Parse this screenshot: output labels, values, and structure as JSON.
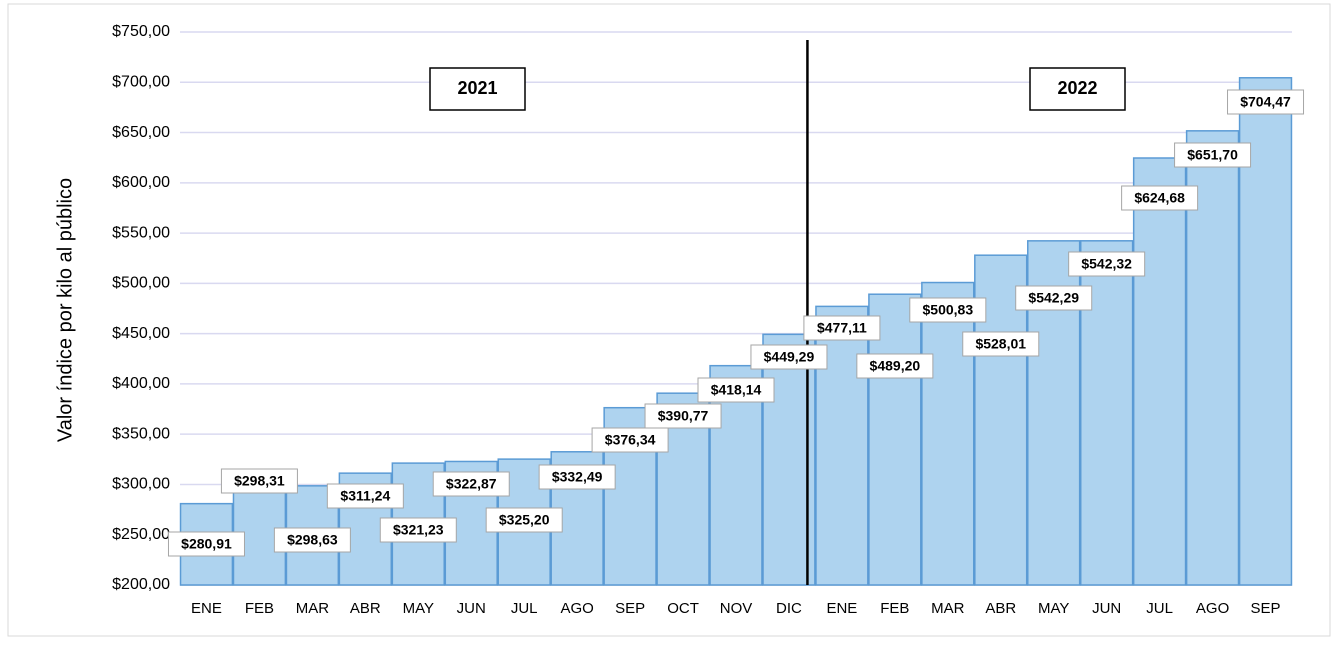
{
  "chart_data": {
    "type": "bar",
    "y_label": "Valor índice por kilo al público",
    "annotations": [
      "2021",
      "2022"
    ],
    "categories": [
      "ENE",
      "FEB",
      "MAR",
      "ABR",
      "MAY",
      "JUN",
      "JUL",
      "AGO",
      "SEP",
      "OCT",
      "NOV",
      "DIC",
      "ENE",
      "FEB",
      "MAR",
      "ABR",
      "MAY",
      "JUN",
      "JUL",
      "AGO",
      "SEP"
    ],
    "values": [
      280.91,
      298.31,
      298.63,
      311.24,
      321.23,
      322.87,
      325.2,
      332.49,
      376.34,
      390.77,
      418.14,
      449.29,
      477.11,
      489.2,
      500.83,
      528.01,
      542.29,
      542.32,
      624.68,
      651.7,
      704.47
    ],
    "value_labels": [
      "$280,91",
      "$298,31",
      "$298,63",
      "$311,24",
      "$321,23",
      "$322,87",
      "$325,20",
      "$332,49",
      "$376,34",
      "$390,77",
      "$418,14",
      "$449,29",
      "$477,11",
      "$489,20",
      "$500,83",
      "$528,01",
      "$542,29",
      "$542,32",
      "$624,68",
      "$651,70",
      "$704,47"
    ],
    "color": "#aed3ef",
    "ylim": [
      200,
      750
    ],
    "yticks": [
      {
        "value": 200,
        "label": "$200,00"
      },
      {
        "value": 250,
        "label": "$250,00"
      },
      {
        "value": 300,
        "label": "$300,00"
      },
      {
        "value": 350,
        "label": "$350,00"
      },
      {
        "value": 400,
        "label": "$400,00"
      },
      {
        "value": 450,
        "label": "$450,00"
      },
      {
        "value": 500,
        "label": "$500,00"
      },
      {
        "value": 550,
        "label": "$550,00"
      },
      {
        "value": 600,
        "label": "$600,00"
      },
      {
        "value": 650,
        "label": "$650,00"
      },
      {
        "value": 700,
        "label": "$700,00"
      },
      {
        "value": 750,
        "label": "$750,00"
      }
    ],
    "grid": true
  }
}
